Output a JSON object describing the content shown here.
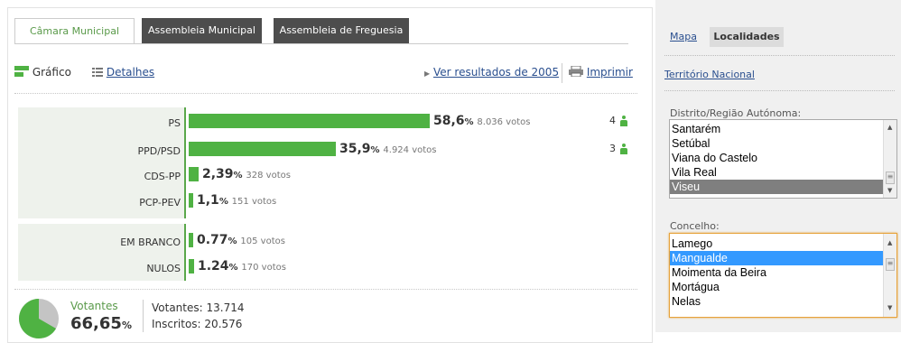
{
  "tabs": [
    {
      "label": "Câmara Municipal",
      "active": true
    },
    {
      "label": "Assembleia Municipal",
      "active": false
    },
    {
      "label": "Assembleia de Freguesia",
      "active": false
    }
  ],
  "toolbar": {
    "grafico": "Gráfico",
    "detalhes": "Detalhes",
    "ver_resultados": "Ver resultados de 2005",
    "imprimir": "Imprimir"
  },
  "chart_data": {
    "type": "bar",
    "categories": [
      "PS",
      "PPD/PSD",
      "CDS-PP",
      "PCP-PEV",
      "EM BRANCO",
      "NULOS"
    ],
    "values": [
      58.6,
      35.9,
      2.39,
      1.1,
      0.77,
      1.24
    ],
    "series": [
      {
        "values": [
          58.6,
          35.9,
          2.39,
          1.1,
          0.77,
          1.24
        ]
      }
    ],
    "ylim": [
      0,
      100
    ]
  },
  "results": [
    {
      "party": "PS",
      "pct": "58,6",
      "votes": "8.036 votos",
      "seats": "4"
    },
    {
      "party": "PPD/PSD",
      "pct": "35,9",
      "votes": "4.924 votos",
      "seats": "3"
    },
    {
      "party": "CDS-PP",
      "pct": "2,39",
      "votes": "328 votos",
      "seats": ""
    },
    {
      "party": "PCP-PEV",
      "pct": "1,1",
      "votes": "151 votos",
      "seats": ""
    },
    {
      "party": "EM BRANCO",
      "pct": "0.77",
      "votes": "105 votos",
      "seats": ""
    },
    {
      "party": "NULOS",
      "pct": "1.24",
      "votes": "170 votos",
      "seats": ""
    }
  ],
  "pct_sign": "%",
  "turnout": {
    "label": "Votantes",
    "pct": "66,65",
    "fraction": 0.6665,
    "votantes": "Votantes: 13.714",
    "inscritos": "Inscritos: 20.576"
  },
  "sidebar": {
    "tab_mapa": "Mapa",
    "tab_localidades": "Localidades",
    "territorio": "Território Nacional",
    "distrito_label": "Distrito/Região Autónoma:",
    "distritos": [
      "Santarém",
      "Setúbal",
      "Viana do Castelo",
      "Vila Real",
      "Viseu"
    ],
    "distrito_selected": "Viseu",
    "concelho_label": "Concelho:",
    "concelhos": [
      "Lamego",
      "Mangualde",
      "Moimenta da Beira",
      "Mortágua",
      "Nelas"
    ],
    "concelho_selected": "Mangualde"
  },
  "colors": {
    "bar": "#4fb243",
    "tab_inactive": "#4d4d4d",
    "link": "#2a4f8f",
    "select_grey": "#7f7f7f",
    "select_blue": "#3399ff"
  }
}
